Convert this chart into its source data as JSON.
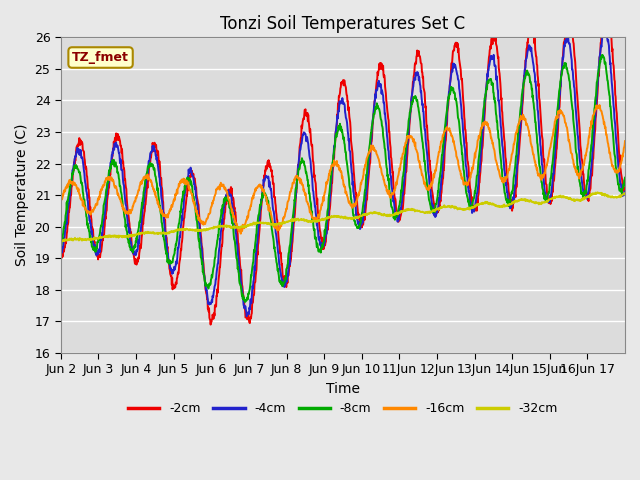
{
  "title": "Tonzi Soil Temperatures Set C",
  "xlabel": "Time",
  "ylabel": "Soil Temperature (C)",
  "ylim": [
    16.0,
    26.0
  ],
  "yticks": [
    16.0,
    17.0,
    18.0,
    19.0,
    20.0,
    21.0,
    22.0,
    23.0,
    24.0,
    25.0,
    26.0
  ],
  "annotation_text": "TZ_fmet",
  "legend_labels": [
    "-2cm",
    "-4cm",
    "-8cm",
    "-16cm",
    "-32cm"
  ],
  "line_colors": [
    "#ee0000",
    "#2222cc",
    "#00aa00",
    "#ff8800",
    "#cccc00"
  ],
  "line_widths": [
    1.4,
    1.4,
    1.4,
    1.4,
    1.4
  ],
  "plot_bg": "#dcdcdc",
  "fig_bg": "#e8e8e8",
  "grid_color": "#ffffff",
  "xtick_labels": [
    "Jun 2",
    "Jun 3",
    "Jun 4",
    "Jun 5",
    "Jun 6",
    "Jun 7",
    "Jun 8",
    "Jun 9",
    "Jun 10",
    "11Jun",
    "12Jun",
    "13Jun",
    "14Jun",
    "15Jun",
    "16Jun 17"
  ],
  "days": 15,
  "num_points": 1440
}
